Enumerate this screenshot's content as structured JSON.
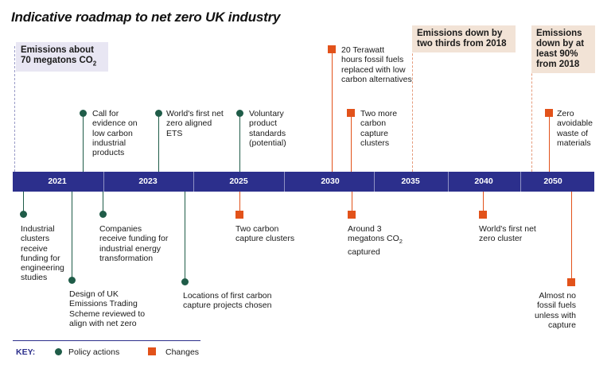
{
  "title": "Indicative roadmap to net zero UK industry",
  "boxes": {
    "start": {
      "line1": "Emissions about",
      "line2_prefix": "70 megatons CO",
      "line2_sub": "2"
    },
    "y2035": {
      "line1": "Emissions down by",
      "line2": "two thirds from 2018"
    },
    "y2050": {
      "line1": "Emissions",
      "line2": "down by at",
      "line3": "least 90%",
      "line4": "from 2018"
    }
  },
  "years": [
    "2021",
    "2023",
    "2025",
    "2030",
    "2035",
    "2040",
    "2050"
  ],
  "above": {
    "call_evidence": [
      "Call for",
      "evidence on",
      "low carbon",
      "industrial",
      "products"
    ],
    "first_ets": [
      "World's first net",
      "zero aligned",
      "ETS"
    ],
    "voluntary": [
      "Voluntary",
      "product",
      "standards",
      "(potential)"
    ],
    "terawatt": [
      "20 Terawatt",
      "hours fossil fuels",
      "replaced with low",
      "carbon alternatives"
    ],
    "two_more": [
      "Two more",
      "carbon",
      "capture",
      "clusters"
    ],
    "zero_waste": [
      "Zero",
      "avoidable",
      "waste of",
      "materials"
    ]
  },
  "below": {
    "clusters_funding": [
      "Industrial",
      "clusters",
      "receive",
      "funding for",
      "engineering",
      "studies"
    ],
    "companies": [
      "Companies",
      "receive funding for",
      "industrial energy",
      "transformation"
    ],
    "design_ets": [
      "Design of UK",
      "Emissions Trading",
      "Scheme reviewed to",
      "align with net zero"
    ],
    "locations": [
      "Locations of first carbon",
      "capture projects chosen"
    ],
    "two_carbon": [
      "Two carbon",
      "capture clusters"
    ],
    "around3": {
      "line1": "Around 3",
      "line2_prefix": "megatons CO",
      "line2_sub": "2",
      "line3": "captured"
    },
    "first_cluster": [
      "World's first net",
      "zero cluster"
    ],
    "almost_no": [
      "Almost no",
      "fossil fuels",
      "unless with",
      "capture"
    ]
  },
  "key": {
    "label": "KEY:",
    "policy": "Policy actions",
    "changes": "Changes"
  },
  "colors": {
    "bar": "#2c2f8c",
    "policy": "#1f5c48",
    "change": "#e2521a",
    "box_peach": "#f2e3d6",
    "box_lavender": "#e8e6f3"
  }
}
